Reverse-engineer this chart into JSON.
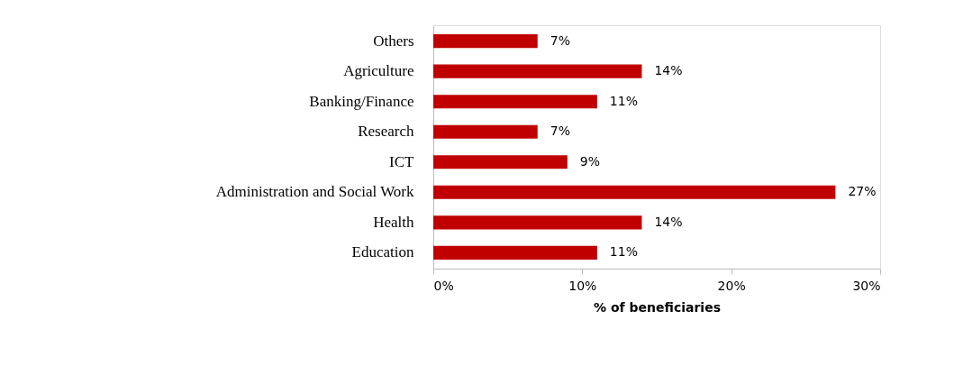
{
  "chart_data": {
    "type": "bar",
    "orientation": "horizontal",
    "xlabel": "% of beneficiaries",
    "categories": [
      "Others",
      "Agriculture",
      "Banking/Finance",
      "Research",
      "ICT",
      "Administration and Social Work",
      "Health",
      "Education"
    ],
    "values": [
      7,
      14,
      11,
      7,
      9,
      27,
      14,
      11
    ],
    "value_labels": [
      "7%",
      "14%",
      "11%",
      "7%",
      "9%",
      "27%",
      "14%",
      "11%"
    ],
    "color": "#c00000",
    "xlim": [
      0,
      30
    ],
    "xticks": [
      {
        "value": 0,
        "label": "0%"
      },
      {
        "value": 10,
        "label": "10%"
      },
      {
        "value": 20,
        "label": "20%"
      },
      {
        "value": 30,
        "label": "30%"
      }
    ],
    "grid": false
  }
}
